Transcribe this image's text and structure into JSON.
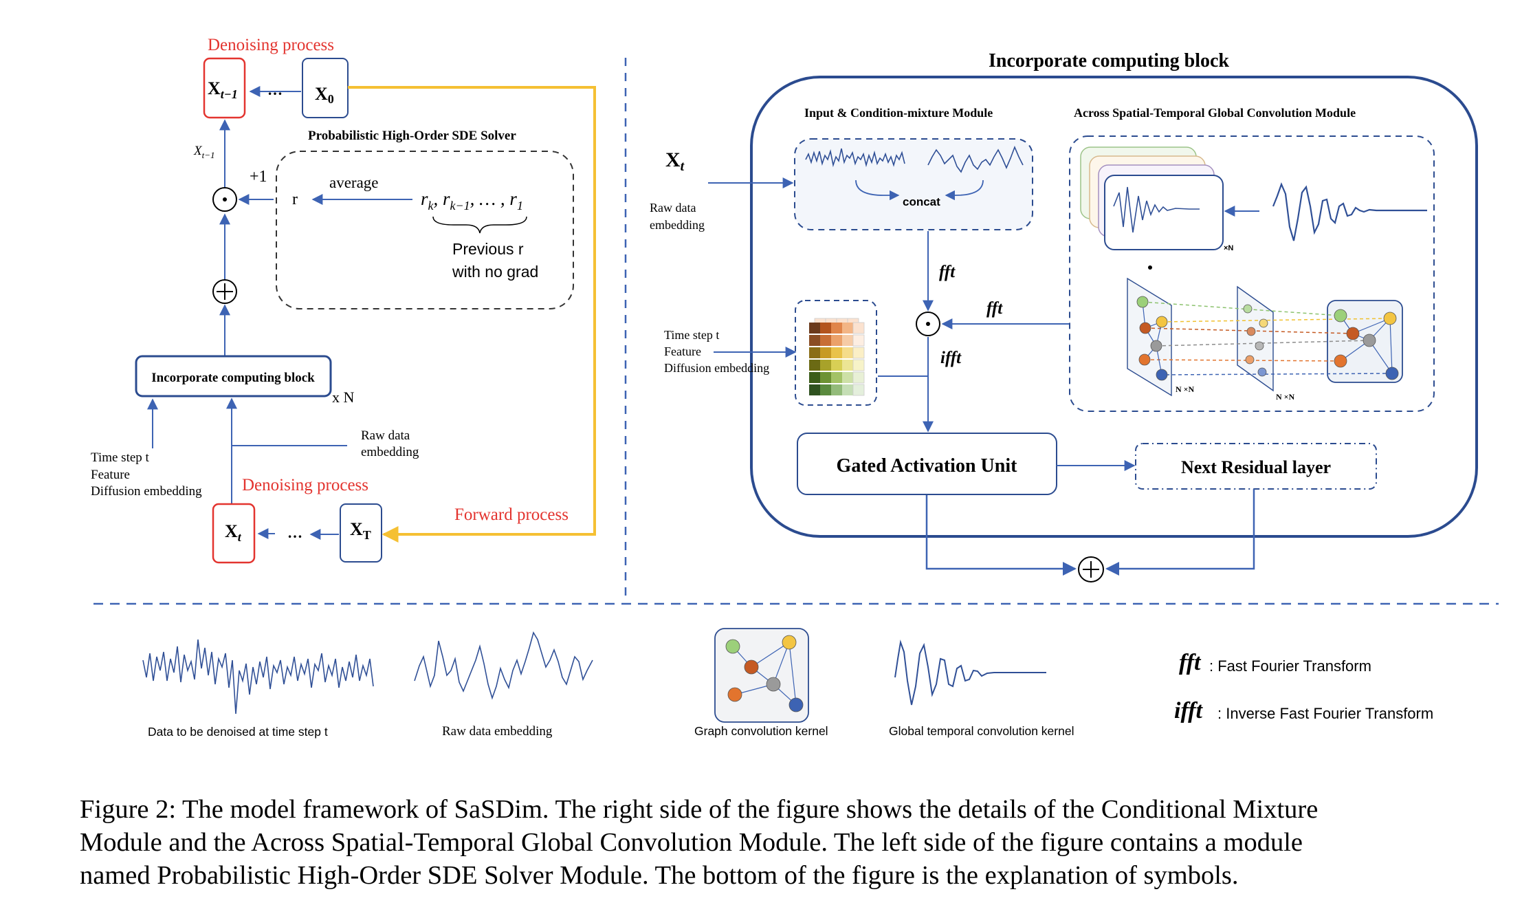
{
  "colors": {
    "blue": "#3d63b3",
    "dark_blue": "#2b4b8f",
    "red": "#e3342f",
    "yellow": "#f5c033",
    "wave": "#2f4f96"
  },
  "left_panel": {
    "denoise_top": "Denoising process",
    "x_t_minus_1": "X",
    "x_t_minus_1_sub": "t−1",
    "x0": "X",
    "x0_sub": "0",
    "ellipsis": "…",
    "x_label_side": "X",
    "x_label_side_sub": "t−1",
    "plus_one": "+1",
    "solver_title": "Probabilistic High-Order SDE Solver",
    "r": "r",
    "average": "average",
    "r_seq": "r",
    "r_seq_sub1": "k",
    "r_seq_mid": ", r",
    "r_seq_sub2": "k−1",
    "r_seq_tail": ", … , r",
    "r_seq_sub3": "1",
    "prev_r_1": "Previous r",
    "prev_r_2": "with no grad",
    "block_label": "Incorporate computing block",
    "times_n": "x N",
    "raw_emb_1": "Raw data",
    "raw_emb_2": "embedding",
    "time_step": "Time step t",
    "feature": "Feature",
    "diff_emb": "Diffusion embedding",
    "denoise_bottom": "Denoising process",
    "x_t": "X",
    "x_t_sub": "t",
    "x_T": "X",
    "x_T_sub": "T",
    "forward": "Forward process"
  },
  "right_panel": {
    "title": "Incorporate computing block",
    "input_module": "Input & Condition-mixture  Module",
    "across_module": "Across Spatial-Temporal Global Convolution Module",
    "x_t": "X",
    "x_t_sub": "t",
    "raw_1": "Raw data",
    "raw_2": "embedding",
    "concat": "concat",
    "times_n_small": "×N",
    "fft_1": "fft",
    "fft_2": "fft",
    "ifft": "ifft",
    "time_step": "Time step t",
    "feature": "Feature",
    "diff_emb": "Diffusion embedding",
    "nxn_1": "N ×N",
    "nxn_2": "N ×N",
    "gated": "Gated Activation Unit",
    "next_res": "Next Residual layer"
  },
  "legend": {
    "denoised": "Data to be denoised at time step t",
    "raw": "Raw data embedding",
    "graph": "Graph convolution kernel",
    "global": "Global temporal convolution kernel",
    "fft": "fft",
    "fft_desc": ": Fast Fourier Transform",
    "ifft": "ifft",
    "ifft_desc": ": Inverse Fast Fourier Transform"
  },
  "caption": {
    "line1": "Figure 2: The model framework of SaSDim. The right side of the figure shows the details of the Conditional Mixture",
    "line2": "Module and the Across Spatial-Temporal Global Convolution Module. The left side of the figure contains a module",
    "line3": "named Probabilistic High-Order SDE Solver Module. The bottom of the figure is the explanation of symbols."
  }
}
